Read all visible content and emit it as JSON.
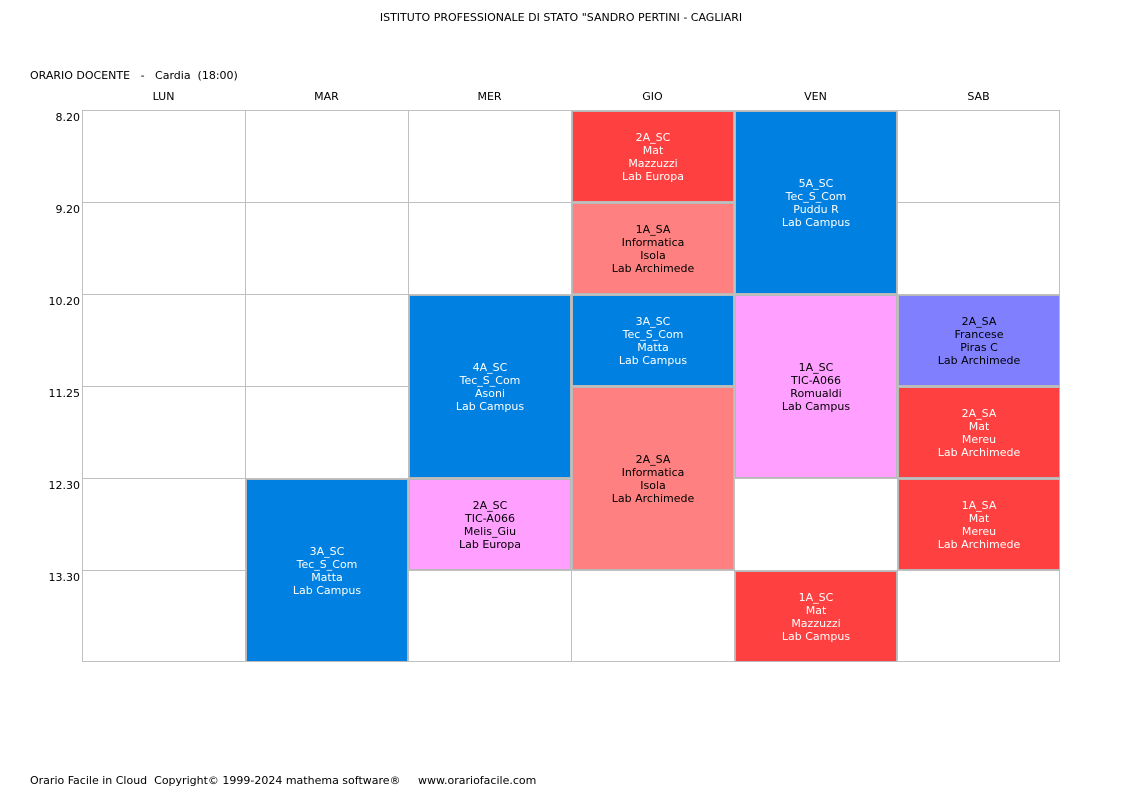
{
  "header": {
    "title": "ISTITUTO PROFESSIONALE DI STATO \"SANDRO PERTINI - CAGLIARI",
    "teacher_line": "ORARIO DOCENTE   -   Cardia  (18:00)"
  },
  "days": [
    "LUN",
    "MAR",
    "MER",
    "GIO",
    "VEN",
    "SAB"
  ],
  "times": [
    "8.20",
    "9.20",
    "10.20",
    "11.25",
    "12.30",
    "13.30"
  ],
  "colors": {
    "blue": "#0080e0",
    "red": "#ff4040",
    "salmon": "#ff8080",
    "pink": "#ff9fff",
    "violet": "#8080ff",
    "grid_line": "#c0c0c0"
  },
  "lessons": [
    {
      "day": 1,
      "start": 4,
      "span": 2,
      "color": "blue",
      "lines": [
        "3A_SC",
        "Tec_S_Com",
        "Matta",
        "Lab Campus"
      ],
      "text_color": "#ffffff"
    },
    {
      "day": 2,
      "start": 2,
      "span": 2,
      "color": "blue",
      "lines": [
        "4A_SC",
        "Tec_S_Com",
        "Asoni",
        "Lab Campus"
      ],
      "text_color": "#ffffff"
    },
    {
      "day": 2,
      "start": 4,
      "span": 1,
      "color": "pink",
      "lines": [
        "2A_SC",
        "TIC-A066",
        "Melis_Giu",
        "Lab Europa"
      ],
      "text_color": "#000000"
    },
    {
      "day": 3,
      "start": 0,
      "span": 1,
      "color": "red",
      "lines": [
        "2A_SC",
        "Mat",
        "Mazzuzzi",
        "Lab Europa"
      ],
      "text_color": "#ffffff"
    },
    {
      "day": 3,
      "start": 1,
      "span": 1,
      "color": "salmon",
      "lines": [
        "1A_SA",
        "Informatica",
        "Isola",
        "Lab Archimede"
      ],
      "text_color": "#000000"
    },
    {
      "day": 3,
      "start": 2,
      "span": 1,
      "color": "blue",
      "lines": [
        "3A_SC",
        "Tec_S_Com",
        "Matta",
        "Lab Campus"
      ],
      "text_color": "#ffffff"
    },
    {
      "day": 3,
      "start": 3,
      "span": 2,
      "color": "salmon",
      "lines": [
        "2A_SA",
        "Informatica",
        "Isola",
        "Lab Archimede"
      ],
      "text_color": "#000000"
    },
    {
      "day": 4,
      "start": 0,
      "span": 2,
      "color": "blue",
      "lines": [
        "5A_SC",
        "Tec_S_Com",
        "Puddu R",
        "Lab Campus"
      ],
      "text_color": "#ffffff"
    },
    {
      "day": 4,
      "start": 2,
      "span": 2,
      "color": "pink",
      "lines": [
        "1A_SC",
        "TIC-A066",
        "Romualdi",
        "Lab Campus"
      ],
      "text_color": "#000000"
    },
    {
      "day": 4,
      "start": 5,
      "span": 1,
      "color": "red",
      "lines": [
        "1A_SC",
        "Mat",
        "Mazzuzzi",
        "Lab Campus"
      ],
      "text_color": "#ffffff"
    },
    {
      "day": 5,
      "start": 2,
      "span": 1,
      "color": "violet",
      "lines": [
        "2A_SA",
        "Francese",
        "Piras C",
        "Lab Archimede"
      ],
      "text_color": "#000000"
    },
    {
      "day": 5,
      "start": 3,
      "span": 1,
      "color": "red",
      "lines": [
        "2A_SA",
        "Mat",
        "Mereu",
        "Lab Archimede"
      ],
      "text_color": "#ffffff"
    },
    {
      "day": 5,
      "start": 4,
      "span": 1,
      "color": "red",
      "lines": [
        "1A_SA",
        "Mat",
        "Mereu",
        "Lab Archimede"
      ],
      "text_color": "#ffffff"
    }
  ],
  "footer": {
    "text": "Orario Facile in Cloud  Copyright© 1999-2024 mathema software®     www.orariofacile.com"
  }
}
